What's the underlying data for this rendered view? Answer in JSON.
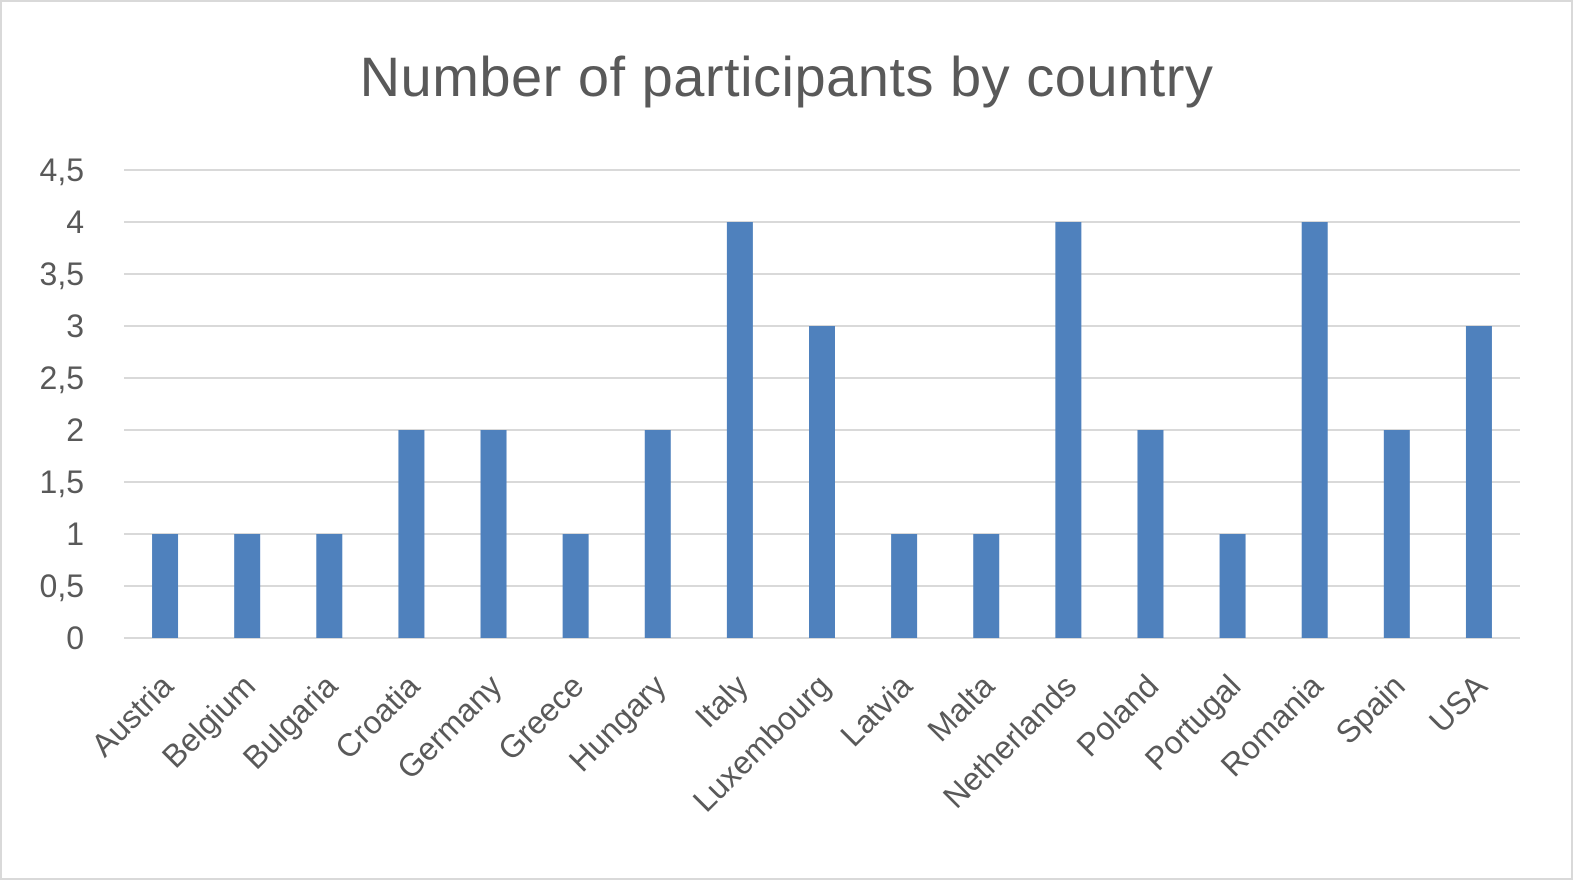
{
  "chart_data": {
    "type": "bar",
    "title": "Number of participants by country",
    "xlabel": "",
    "ylabel": "",
    "categories": [
      "Austria",
      "Belgium",
      "Bulgaria",
      "Croatia",
      "Germany",
      "Greece",
      "Hungary",
      "Italy",
      "Luxembourg",
      "Latvia",
      "Malta",
      "Netherlands",
      "Poland",
      "Portugal",
      "Romania",
      "Spain",
      "USA"
    ],
    "values": [
      1,
      1,
      1,
      2,
      2,
      1,
      2,
      4,
      3,
      1,
      1,
      4,
      2,
      1,
      4,
      2,
      3
    ],
    "ylim": [
      0,
      4.5
    ],
    "y_ticks": [
      0,
      0.5,
      1,
      1.5,
      2,
      2.5,
      3,
      3.5,
      4,
      4.5
    ],
    "y_tick_labels": [
      "0",
      "0,5",
      "1",
      "1,5",
      "2",
      "2,5",
      "3",
      "3,5",
      "4",
      "4,5"
    ],
    "grid": true,
    "legend": "none",
    "bar_color": "#4f81bd"
  }
}
